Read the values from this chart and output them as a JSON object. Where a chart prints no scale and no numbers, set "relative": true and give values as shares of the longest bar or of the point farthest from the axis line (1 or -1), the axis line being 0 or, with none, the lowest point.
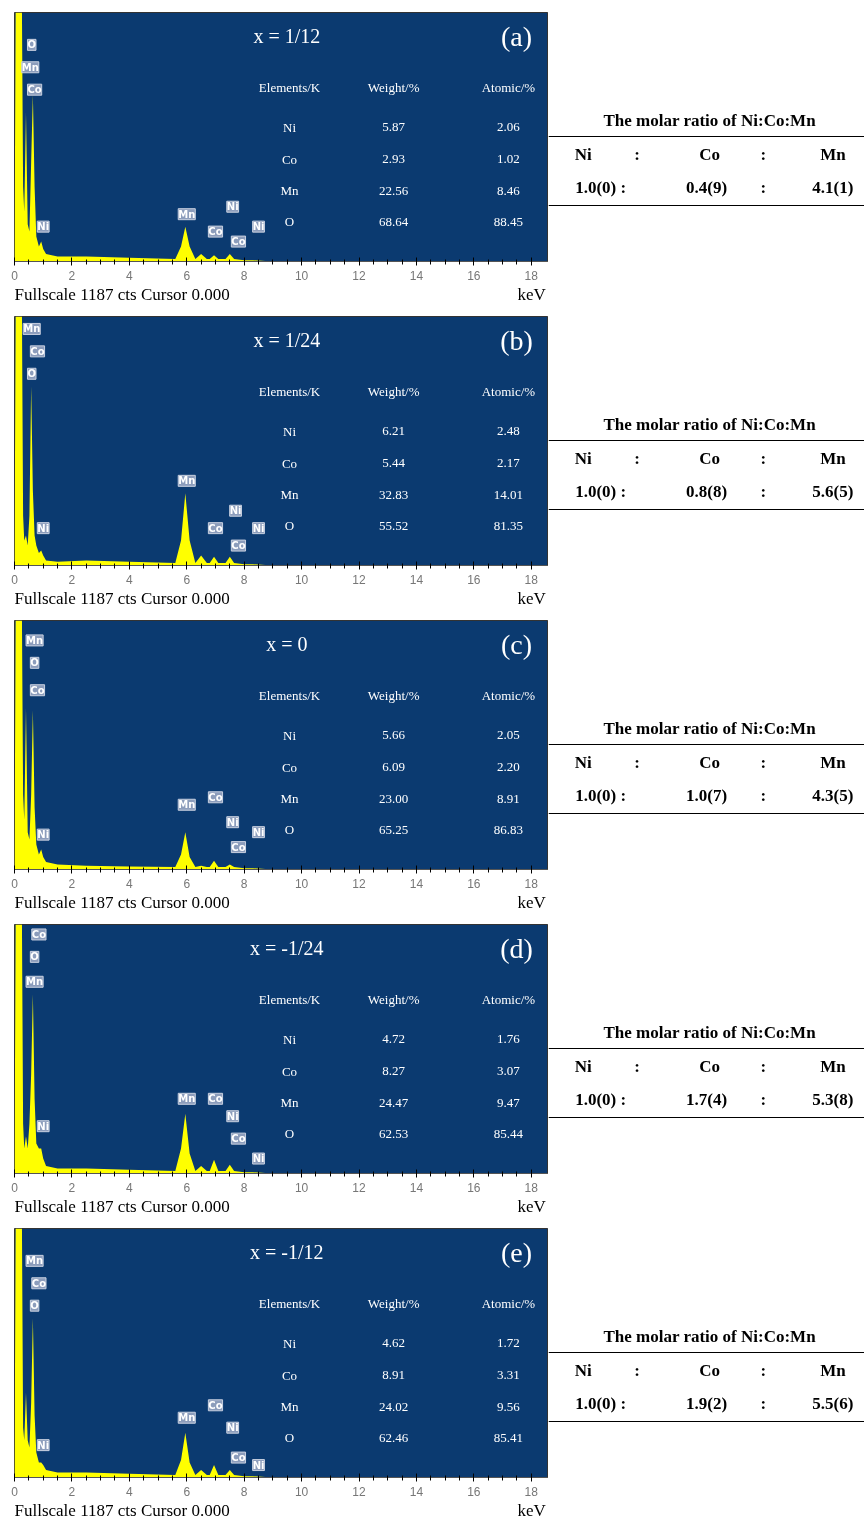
{
  "chart_data": [
    {
      "type": "area",
      "title": "x = 1/12",
      "subtitle": "(a)",
      "xlabel": "keV",
      "relative": true,
      "tick_labels": "x",
      "color": "#ffff00",
      "xlim": [
        0,
        18.6
      ],
      "xticks": [
        0,
        2,
        4,
        6,
        8,
        10,
        12,
        14,
        16,
        18
      ],
      "x": [
        0,
        0.04,
        0.08,
        0.26,
        0.3,
        0.34,
        0.4,
        0.46,
        0.52,
        0.58,
        0.64,
        0.7,
        0.76,
        0.85,
        0.93,
        1.0,
        1.1,
        1.5,
        2.5,
        4,
        5.6,
        5.8,
        5.95,
        6.1,
        6.3,
        6.5,
        6.7,
        6.8,
        6.95,
        7.1,
        7.35,
        7.5,
        7.65,
        8.0,
        8.3,
        9,
        10,
        18
      ],
      "values": [
        0,
        1,
        1,
        1,
        0.3,
        0.2,
        0.6,
        0.15,
        0.12,
        0.4,
        0.67,
        0.3,
        0.1,
        0.06,
        0.08,
        0.05,
        0.03,
        0.02,
        0.02,
        0.015,
        0.01,
        0.06,
        0.14,
        0.06,
        0.01,
        0.03,
        0.01,
        0.01,
        0.025,
        0.01,
        0.01,
        0.03,
        0.01,
        0.005,
        0.005,
        0,
        0,
        0
      ],
      "annotations": [
        "Fullscale 1187 cts Cursor 0.000",
        "Elements/K",
        "Weight/%",
        "Atomic/%",
        "Ni",
        "5.87",
        "2.06",
        "Co",
        "2.93",
        "1.02",
        "Mn",
        "22.56",
        "8.46",
        "O",
        "68.64",
        "88.45",
        "The molar ratio of Ni:Co:Mn",
        "Ni",
        ":",
        "Co",
        ":",
        "Mn",
        "1.0(0) :",
        "0.4(9)",
        ":",
        "4.1(1)",
        {
          "text": "O",
          "x": 0.6,
          "y": 0.87
        },
        {
          "text": "Mn",
          "x": 0.55,
          "y": 0.78
        },
        {
          "text": "Co",
          "x": 0.7,
          "y": 0.69
        },
        {
          "text": "Ni",
          "x": 1.0,
          "y": 0.14
        },
        {
          "text": "Mn",
          "x": 6.0,
          "y": 0.19
        },
        {
          "text": "Co",
          "x": 7.0,
          "y": 0.12
        },
        {
          "text": "Ni",
          "x": 7.6,
          "y": 0.22
        },
        {
          "text": "Co",
          "x": 7.8,
          "y": 0.08
        },
        {
          "text": "Ni",
          "x": 8.5,
          "y": 0.14
        }
      ]
    },
    {
      "type": "area",
      "title": "x = 1/24",
      "subtitle": "(b)",
      "xlabel": "keV",
      "relative": true,
      "tick_labels": "x",
      "color": "#ffff00",
      "xlim": [
        0,
        18.6
      ],
      "xticks": [
        0,
        2,
        4,
        6,
        8,
        10,
        12,
        14,
        16,
        18
      ],
      "x": [
        0,
        0.04,
        0.08,
        0.26,
        0.3,
        0.34,
        0.4,
        0.46,
        0.52,
        0.58,
        0.64,
        0.7,
        0.76,
        0.85,
        0.93,
        1.0,
        1.1,
        1.5,
        2.5,
        4,
        5.6,
        5.8,
        5.95,
        6.1,
        6.3,
        6.5,
        6.7,
        6.8,
        6.95,
        7.1,
        7.35,
        7.5,
        7.65,
        8.0,
        8.3,
        9,
        10,
        18
      ],
      "values": [
        0,
        1,
        1,
        1,
        0.2,
        0.1,
        0.12,
        0.08,
        0.2,
        0.72,
        0.3,
        0.12,
        0.08,
        0.05,
        0.06,
        0.04,
        0.02,
        0.015,
        0.02,
        0.015,
        0.01,
        0.1,
        0.29,
        0.1,
        0.01,
        0.04,
        0.01,
        0.01,
        0.035,
        0.01,
        0.01,
        0.035,
        0.01,
        0.005,
        0.005,
        0,
        0,
        0
      ],
      "annotations": [
        "Fullscale 1187 cts Cursor 0.000",
        "Elements/K",
        "Weight/%",
        "Atomic/%",
        "Ni",
        "6.21",
        "2.48",
        "Co",
        "5.44",
        "2.17",
        "Mn",
        "32.83",
        "14.01",
        "O",
        "55.52",
        "81.35",
        "The molar ratio of Ni:Co:Mn",
        "Ni",
        ":",
        "Co",
        ":",
        "Mn",
        "1.0(0) :",
        "0.8(8)",
        ":",
        "5.6(5)",
        {
          "text": "Mn",
          "x": 0.6,
          "y": 0.95
        },
        {
          "text": "Co",
          "x": 0.8,
          "y": 0.86
        },
        {
          "text": "O",
          "x": 0.6,
          "y": 0.77
        },
        {
          "text": "Ni",
          "x": 1.0,
          "y": 0.15
        },
        {
          "text": "Mn",
          "x": 6.0,
          "y": 0.34
        },
        {
          "text": "Co",
          "x": 7.0,
          "y": 0.15
        },
        {
          "text": "Ni",
          "x": 7.7,
          "y": 0.22
        },
        {
          "text": "Co",
          "x": 7.8,
          "y": 0.08
        },
        {
          "text": "Ni",
          "x": 8.5,
          "y": 0.15
        }
      ]
    },
    {
      "type": "area",
      "title": "x = 0",
      "subtitle": "(c)",
      "xlabel": "keV",
      "relative": true,
      "tick_labels": "x",
      "color": "#ffff00",
      "xlim": [
        0,
        18.6
      ],
      "xticks": [
        0,
        2,
        4,
        6,
        8,
        10,
        12,
        14,
        16,
        18
      ],
      "x": [
        0,
        0.04,
        0.08,
        0.26,
        0.3,
        0.34,
        0.4,
        0.46,
        0.52,
        0.58,
        0.64,
        0.7,
        0.76,
        0.85,
        0.93,
        1.0,
        1.1,
        1.5,
        2.5,
        4,
        5.6,
        5.8,
        5.95,
        6.1,
        6.3,
        6.5,
        6.7,
        6.8,
        6.95,
        7.1,
        7.35,
        7.5,
        7.65,
        8.0,
        8.3,
        9,
        10,
        18
      ],
      "values": [
        0,
        1,
        1,
        1,
        0.3,
        0.2,
        0.65,
        0.15,
        0.12,
        0.3,
        0.64,
        0.25,
        0.1,
        0.06,
        0.08,
        0.05,
        0.03,
        0.02,
        0.015,
        0.012,
        0.01,
        0.06,
        0.15,
        0.05,
        0.01,
        0.015,
        0.01,
        0.01,
        0.035,
        0.01,
        0.01,
        0.02,
        0.01,
        0.005,
        0.005,
        0,
        0,
        0
      ],
      "annotations": [
        "Fullscale 1187 cts Cursor 0.000",
        "Elements/K",
        "Weight/%",
        "Atomic/%",
        "Ni",
        "5.66",
        "2.05",
        "Co",
        "6.09",
        "2.20",
        "Mn",
        "23.00",
        "8.91",
        "O",
        "65.25",
        "86.83",
        "The molar ratio of Ni:Co:Mn",
        "Ni",
        ":",
        "Co",
        ":",
        "Mn",
        "1.0(0) :",
        "1.0(7)",
        ":",
        "4.3(5)",
        {
          "text": "Mn",
          "x": 0.7,
          "y": 0.92
        },
        {
          "text": "O",
          "x": 0.7,
          "y": 0.83
        },
        {
          "text": "Co",
          "x": 0.8,
          "y": 0.72
        },
        {
          "text": "Ni",
          "x": 1.0,
          "y": 0.14
        },
        {
          "text": "Mn",
          "x": 6.0,
          "y": 0.26
        },
        {
          "text": "Co",
          "x": 7.0,
          "y": 0.29
        },
        {
          "text": "Ni",
          "x": 7.6,
          "y": 0.19
        },
        {
          "text": "Co",
          "x": 7.8,
          "y": 0.09
        },
        {
          "text": "Ni",
          "x": 8.5,
          "y": 0.15
        }
      ]
    },
    {
      "type": "area",
      "title": "x = -1/24",
      "subtitle": "(d)",
      "xlabel": "keV",
      "relative": true,
      "tick_labels": "x",
      "color": "#ffff00",
      "xlim": [
        0,
        18.6
      ],
      "xticks": [
        0,
        2,
        4,
        6,
        8,
        10,
        12,
        14,
        16,
        18
      ],
      "x": [
        0,
        0.04,
        0.08,
        0.26,
        0.3,
        0.34,
        0.4,
        0.46,
        0.52,
        0.58,
        0.64,
        0.7,
        0.76,
        0.85,
        0.93,
        1.0,
        1.1,
        1.5,
        2.5,
        4,
        5.6,
        5.8,
        5.95,
        6.1,
        6.3,
        6.5,
        6.7,
        6.8,
        6.95,
        7.1,
        7.35,
        7.5,
        7.65,
        8.0,
        8.3,
        9,
        10,
        18
      ],
      "values": [
        0,
        1,
        1,
        1,
        0.2,
        0.1,
        0.15,
        0.1,
        0.2,
        0.4,
        0.72,
        0.3,
        0.12,
        0.1,
        0.1,
        0.06,
        0.03,
        0.02,
        0.02,
        0.015,
        0.01,
        0.1,
        0.24,
        0.08,
        0.01,
        0.03,
        0.01,
        0.01,
        0.055,
        0.01,
        0.01,
        0.035,
        0.01,
        0.005,
        0.005,
        0,
        0,
        0
      ],
      "annotations": [
        "Fullscale 1187 cts Cursor 0.000",
        "Elements/K",
        "Weight/%",
        "Atomic/%",
        "Ni",
        "4.72",
        "1.76",
        "Co",
        "8.27",
        "3.07",
        "Mn",
        "24.47",
        "9.47",
        "O",
        "62.53",
        "85.44",
        "The molar ratio of Ni:Co:Mn",
        "Ni",
        ":",
        "Co",
        ":",
        "Mn",
        "1.0(0) :",
        "1.7(4)",
        ":",
        "5.3(8)",
        {
          "text": "Co",
          "x": 0.85,
          "y": 0.96
        },
        {
          "text": "O",
          "x": 0.7,
          "y": 0.87
        },
        {
          "text": "Mn",
          "x": 0.7,
          "y": 0.77
        },
        {
          "text": "Ni",
          "x": 1.0,
          "y": 0.19
        },
        {
          "text": "Mn",
          "x": 6.0,
          "y": 0.3
        },
        {
          "text": "Co",
          "x": 7.0,
          "y": 0.3
        },
        {
          "text": "Ni",
          "x": 7.6,
          "y": 0.23
        },
        {
          "text": "Co",
          "x": 7.8,
          "y": 0.14
        },
        {
          "text": "Ni",
          "x": 8.5,
          "y": 0.06
        }
      ]
    },
    {
      "type": "area",
      "title": "x = -1/12",
      "subtitle": "(e)",
      "xlabel": "keV",
      "relative": true,
      "tick_labels": "x",
      "color": "#ffff00",
      "xlim": [
        0,
        18.6
      ],
      "xticks": [
        0,
        2,
        4,
        6,
        8,
        10,
        12,
        14,
        16,
        18
      ],
      "x": [
        0,
        0.04,
        0.08,
        0.26,
        0.3,
        0.34,
        0.4,
        0.46,
        0.52,
        0.58,
        0.64,
        0.7,
        0.76,
        0.85,
        0.93,
        1.0,
        1.1,
        1.5,
        2.5,
        4,
        5.6,
        5.8,
        5.95,
        6.1,
        6.3,
        6.5,
        6.7,
        6.8,
        6.95,
        7.1,
        7.35,
        7.5,
        7.65,
        8.0,
        8.3,
        9,
        10,
        18
      ],
      "values": [
        0,
        1,
        1,
        1,
        0.2,
        0.15,
        0.34,
        0.15,
        0.12,
        0.3,
        0.64,
        0.25,
        0.1,
        0.06,
        0.06,
        0.05,
        0.03,
        0.02,
        0.02,
        0.015,
        0.01,
        0.07,
        0.18,
        0.06,
        0.01,
        0.03,
        0.01,
        0.01,
        0.05,
        0.01,
        0.01,
        0.03,
        0.01,
        0.005,
        0.005,
        0,
        0,
        0
      ],
      "annotations": [
        "Fullscale 1187 cts Cursor 0.000",
        "Elements/K",
        "Weight/%",
        "Atomic/%",
        "Ni",
        "4.62",
        "1.72",
        "Co",
        "8.91",
        "3.31",
        "Mn",
        "24.02",
        "9.56",
        "O",
        "62.46",
        "85.41",
        "The molar ratio of Ni:Co:Mn",
        "Ni",
        ":",
        "Co",
        ":",
        "Mn",
        "1.0(0) :",
        "1.9(2)",
        ":",
        "5.5(6)",
        {
          "text": "Mn",
          "x": 0.7,
          "y": 0.87
        },
        {
          "text": "Co",
          "x": 0.85,
          "y": 0.78
        },
        {
          "text": "O",
          "x": 0.7,
          "y": 0.69
        },
        {
          "text": "Ni",
          "x": 1.0,
          "y": 0.13
        },
        {
          "text": "Mn",
          "x": 6.0,
          "y": 0.24
        },
        {
          "text": "Co",
          "x": 7.0,
          "y": 0.29
        },
        {
          "text": "Ni",
          "x": 7.6,
          "y": 0.2
        },
        {
          "text": "Co",
          "x": 7.8,
          "y": 0.08
        },
        {
          "text": "Ni",
          "x": 8.5,
          "y": 0.05
        }
      ]
    }
  ]
}
